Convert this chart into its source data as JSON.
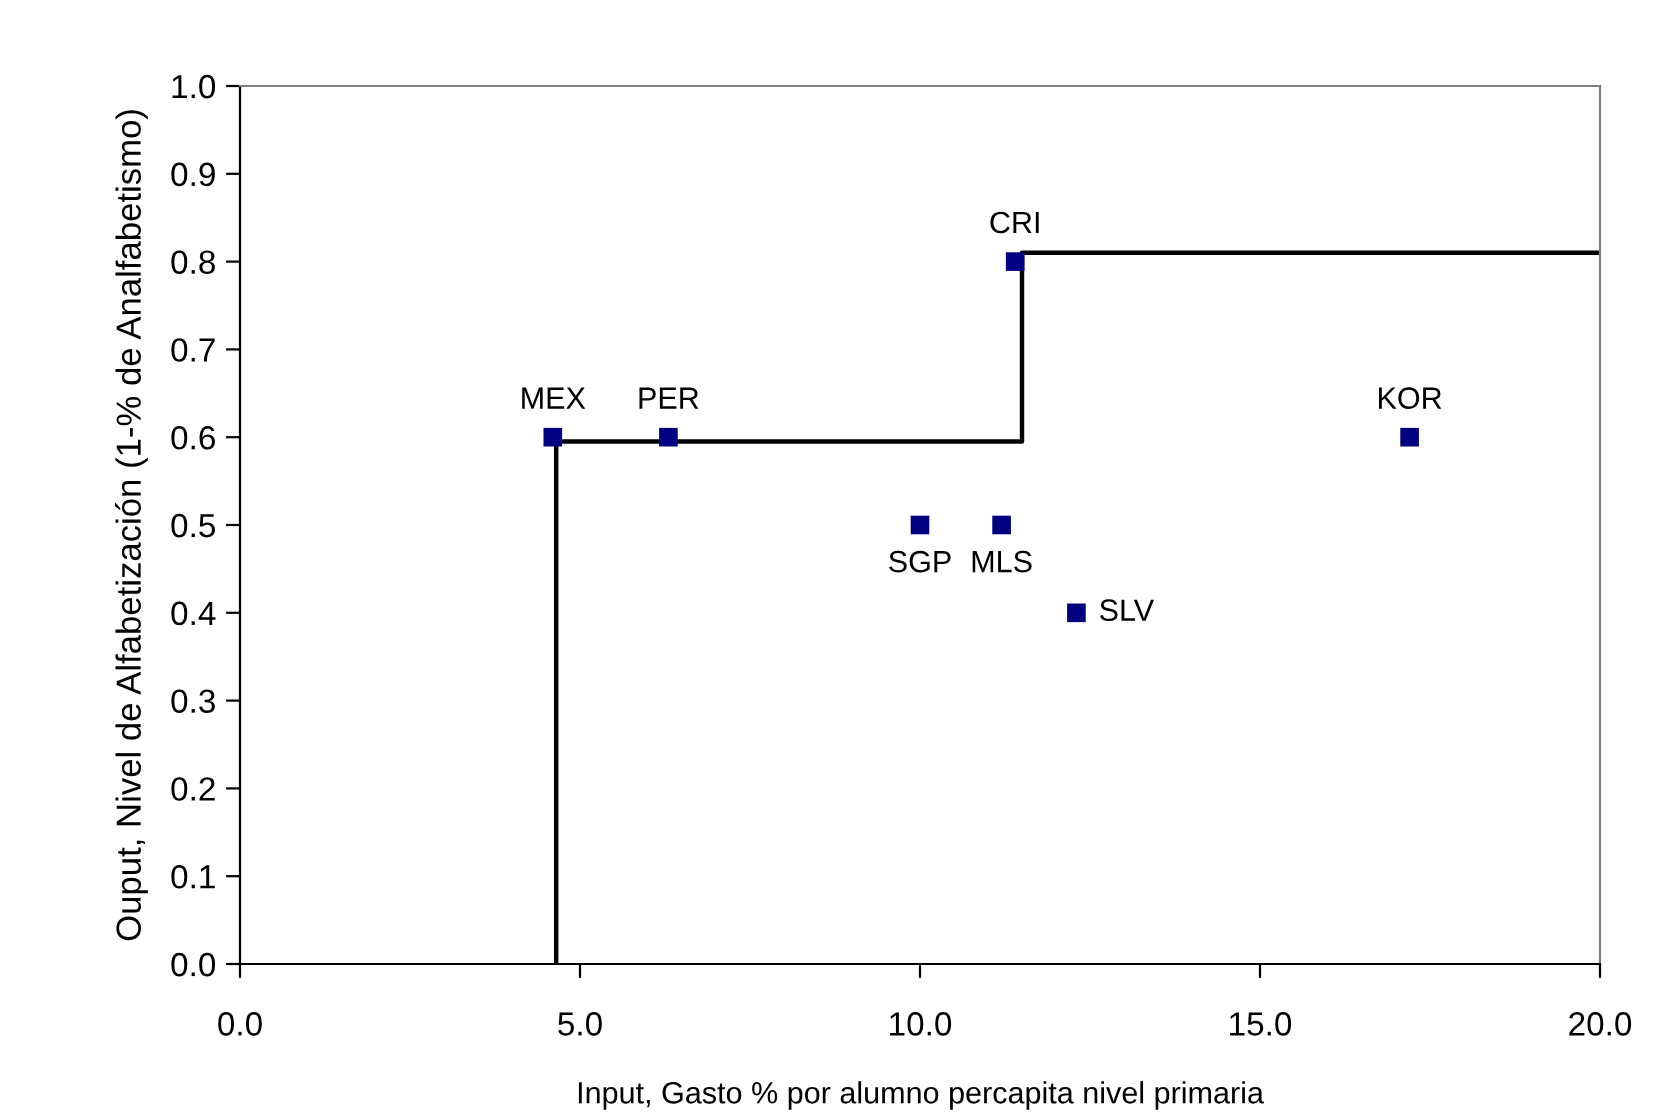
{
  "chart_data": {
    "type": "scatter",
    "xlabel": "Input, Gasto % por alumno percapita nivel primaria",
    "ylabel": "Ouput, Nivel de Alfabetización (1-% de Analfabetismo)",
    "series": [
      {
        "type": "line",
        "color": "#000000",
        "marker": "none",
        "line_style": "solid",
        "x": [
          4.65,
          4.65,
          11.5,
          11.5,
          20.0
        ],
        "values": [
          0.0,
          0.595,
          0.595,
          0.81,
          0.81
        ]
      },
      {
        "color": "#000080",
        "marker": "square",
        "x": [
          4.6,
          6.3,
          11.4,
          10.0,
          11.2,
          12.3,
          17.2
        ],
        "values": [
          0.6,
          0.6,
          0.8,
          0.5,
          0.5,
          0.4,
          0.6
        ],
        "value_labels": [
          "MEX",
          "PER",
          "CRI",
          "SGP",
          "MLS",
          "SLV",
          "KOR"
        ]
      }
    ],
    "xlim": [
      0,
      20
    ],
    "ylim": [
      0,
      1
    ],
    "xticks": [
      {
        "value": 0,
        "label": "0.0"
      },
      {
        "value": 5,
        "label": "5.0"
      },
      {
        "value": 10,
        "label": "10.0"
      },
      {
        "value": 15,
        "label": "15.0"
      },
      {
        "value": 20,
        "label": "20.0"
      }
    ],
    "yticks": [
      {
        "value": 0,
        "label": "0.0"
      },
      {
        "value": 0.1,
        "label": "0.1"
      },
      {
        "value": 0.2,
        "label": "0.2"
      },
      {
        "value": 0.3,
        "label": "0.3"
      },
      {
        "value": 0.4,
        "label": "0.4"
      },
      {
        "value": 0.5,
        "label": "0.5"
      },
      {
        "value": 0.6,
        "label": "0.6"
      },
      {
        "value": 0.7,
        "label": "0.7"
      },
      {
        "value": 0.8,
        "label": "0.8"
      },
      {
        "value": 0.9,
        "label": "0.9"
      },
      {
        "value": 1.0,
        "label": "1.0"
      }
    ],
    "grid": false
  }
}
